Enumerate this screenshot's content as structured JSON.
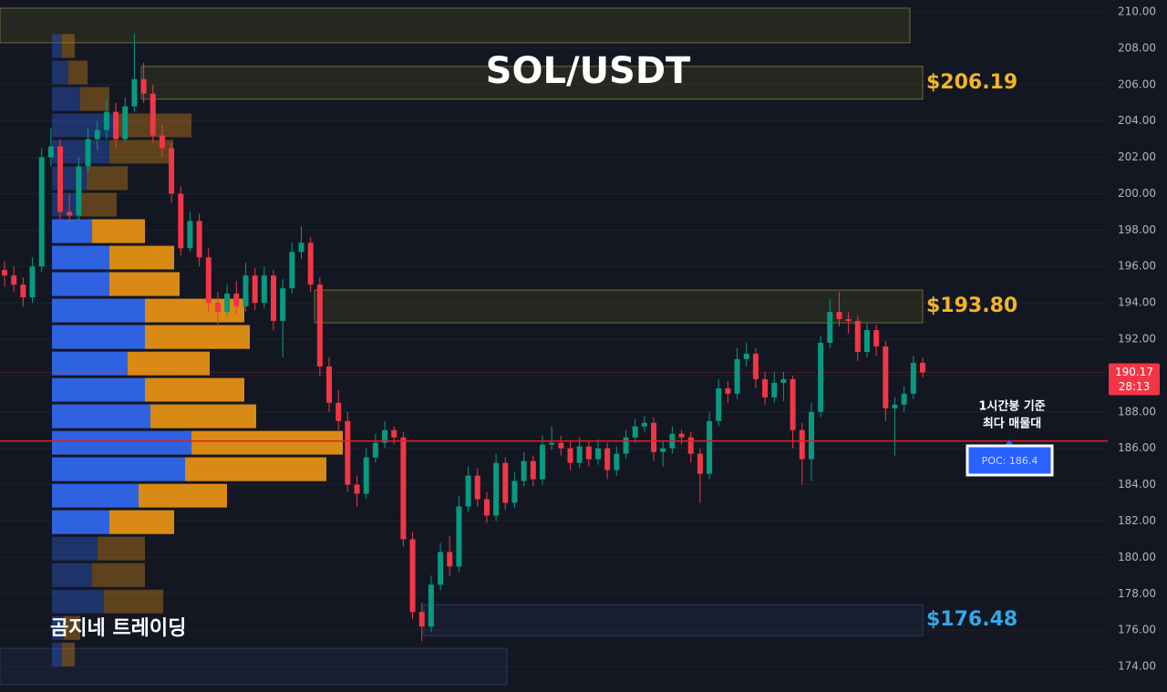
{
  "chart_data": {
    "type": "candlestick",
    "title": "SOL/USDT",
    "watermark": "곰지네 트레이딩",
    "ylim": [
      172.6,
      210.65
    ],
    "yticks": [
      {
        "value": 174,
        "label": "174.00"
      },
      {
        "value": 176,
        "label": "176.00"
      },
      {
        "value": 178,
        "label": "178.00"
      },
      {
        "value": 180,
        "label": "180.00"
      },
      {
        "value": 182,
        "label": "182.00"
      },
      {
        "value": 184,
        "label": "184.00"
      },
      {
        "value": 186,
        "label": "186.00"
      },
      {
        "value": 188,
        "label": "188.00"
      },
      {
        "value": 190,
        "label": "190.00"
      },
      {
        "value": 192,
        "label": "192.00"
      },
      {
        "value": 194,
        "label": "194.00"
      },
      {
        "value": 196,
        "label": "196.00"
      },
      {
        "value": 198,
        "label": "198.00"
      },
      {
        "value": 200,
        "label": "200.00"
      },
      {
        "value": 202,
        "label": "202.00"
      },
      {
        "value": 204,
        "label": "204.00"
      },
      {
        "value": 206,
        "label": "206.00"
      },
      {
        "value": 208,
        "label": "208.00"
      },
      {
        "value": 210,
        "label": "210.00"
      }
    ],
    "grid": true,
    "up_color": "#089981",
    "down_color": "#f23645",
    "candles": [
      [
        195.8,
        196.3,
        194.9,
        195.5
      ],
      [
        195.5,
        196.0,
        194.6,
        195.0
      ],
      [
        195.0,
        195.4,
        193.8,
        194.3
      ],
      [
        194.3,
        196.5,
        194.0,
        196.0
      ],
      [
        196.0,
        202.5,
        195.7,
        202.0
      ],
      [
        202.0,
        203.6,
        201.5,
        202.6
      ],
      [
        202.6,
        203.0,
        198.6,
        199.0
      ],
      [
        199.0,
        200.0,
        198.4,
        198.8
      ],
      [
        198.8,
        202.0,
        198.5,
        201.5
      ],
      [
        201.5,
        203.6,
        201.2,
        203.0
      ],
      [
        203.0,
        204.0,
        202.4,
        203.5
      ],
      [
        203.5,
        205.2,
        203.0,
        204.5
      ],
      [
        204.5,
        205.0,
        202.5,
        203.0
      ],
      [
        203.0,
        205.3,
        202.8,
        204.8
      ],
      [
        204.8,
        208.8,
        204.5,
        206.3
      ],
      [
        206.3,
        207.2,
        205.0,
        205.5
      ],
      [
        205.5,
        206.0,
        202.8,
        203.2
      ],
      [
        203.2,
        203.8,
        202.0,
        202.5
      ],
      [
        202.5,
        202.8,
        199.5,
        200.0
      ],
      [
        200.0,
        200.4,
        196.6,
        197.0
      ],
      [
        197.0,
        199.0,
        196.8,
        198.5
      ],
      [
        198.5,
        198.9,
        196.0,
        196.5
      ],
      [
        196.5,
        197.0,
        193.5,
        194.0
      ],
      [
        194.0,
        194.6,
        192.8,
        193.5
      ],
      [
        193.5,
        195.0,
        193.2,
        194.5
      ],
      [
        194.5,
        195.2,
        193.4,
        193.8
      ],
      [
        193.8,
        196.2,
        193.5,
        195.5
      ],
      [
        195.5,
        195.9,
        193.6,
        194.0
      ],
      [
        194.0,
        196.0,
        193.7,
        195.5
      ],
      [
        195.5,
        195.8,
        192.5,
        193.0
      ],
      [
        193.0,
        195.3,
        191.0,
        194.8
      ],
      [
        194.8,
        197.3,
        194.5,
        196.8
      ],
      [
        196.8,
        198.2,
        196.4,
        197.3
      ],
      [
        197.3,
        197.6,
        194.6,
        195.0
      ],
      [
        195.0,
        195.4,
        190.0,
        190.5
      ],
      [
        190.5,
        191.0,
        188.0,
        188.5
      ],
      [
        188.5,
        189.2,
        187.0,
        187.5
      ],
      [
        187.5,
        188.0,
        183.6,
        184.0
      ],
      [
        184.0,
        184.5,
        182.8,
        183.5
      ],
      [
        183.5,
        186.0,
        183.2,
        185.5
      ],
      [
        185.5,
        186.8,
        185.2,
        186.3
      ],
      [
        186.3,
        187.5,
        186.0,
        187.0
      ],
      [
        187.0,
        187.2,
        186.2,
        186.6
      ],
      [
        186.6,
        186.9,
        180.6,
        181.0
      ],
      [
        181.0,
        181.4,
        176.6,
        177.0
      ],
      [
        177.0,
        177.5,
        175.4,
        176.2
      ],
      [
        176.2,
        179.0,
        175.9,
        178.5
      ],
      [
        178.5,
        180.8,
        178.2,
        180.3
      ],
      [
        180.3,
        181.2,
        179.0,
        179.5
      ],
      [
        179.5,
        183.4,
        179.2,
        182.8
      ],
      [
        182.8,
        185.0,
        182.5,
        184.5
      ],
      [
        184.5,
        184.9,
        182.8,
        183.2
      ],
      [
        183.2,
        183.6,
        181.9,
        182.3
      ],
      [
        182.3,
        185.7,
        182.0,
        185.2
      ],
      [
        185.2,
        185.5,
        182.6,
        183.0
      ],
      [
        183.0,
        184.7,
        182.7,
        184.2
      ],
      [
        184.2,
        185.8,
        183.9,
        185.3
      ],
      [
        185.3,
        185.6,
        183.9,
        184.3
      ],
      [
        184.3,
        186.7,
        184.0,
        186.2
      ],
      [
        186.2,
        187.2,
        185.9,
        186.3
      ],
      [
        186.3,
        186.7,
        185.6,
        186.0
      ],
      [
        186.0,
        186.4,
        184.8,
        185.2
      ],
      [
        185.2,
        186.6,
        184.9,
        186.1
      ],
      [
        186.1,
        186.4,
        185.0,
        185.4
      ],
      [
        185.4,
        186.5,
        185.1,
        186.0
      ],
      [
        186.0,
        186.3,
        184.3,
        184.8
      ],
      [
        184.8,
        186.1,
        184.5,
        185.7
      ],
      [
        185.7,
        187.0,
        185.4,
        186.6
      ],
      [
        186.6,
        187.6,
        186.3,
        187.2
      ],
      [
        187.2,
        187.8,
        186.9,
        187.4
      ],
      [
        187.4,
        187.7,
        185.3,
        185.8
      ],
      [
        185.8,
        186.4,
        185.0,
        186.0
      ],
      [
        186.0,
        187.2,
        185.7,
        186.8
      ],
      [
        186.8,
        187.0,
        186.2,
        186.6
      ],
      [
        186.6,
        186.9,
        185.2,
        185.7
      ],
      [
        185.7,
        186.0,
        183.0,
        184.6
      ],
      [
        184.6,
        188.0,
        184.3,
        187.5
      ],
      [
        187.5,
        189.8,
        187.2,
        189.3
      ],
      [
        189.3,
        189.7,
        188.5,
        189.0
      ],
      [
        189.0,
        191.5,
        188.7,
        190.9
      ],
      [
        190.9,
        191.8,
        190.5,
        191.2
      ],
      [
        191.2,
        191.5,
        189.3,
        189.8
      ],
      [
        189.8,
        190.2,
        188.4,
        188.8
      ],
      [
        188.8,
        190.2,
        188.5,
        189.6
      ],
      [
        189.6,
        190.2,
        188.6,
        189.8
      ],
      [
        189.8,
        190.0,
        186.0,
        187.0
      ],
      [
        187.0,
        187.4,
        184.0,
        185.4
      ],
      [
        185.4,
        188.5,
        184.2,
        188.0
      ],
      [
        188.0,
        192.2,
        187.7,
        191.8
      ],
      [
        191.8,
        194.2,
        191.5,
        193.5
      ],
      [
        193.5,
        194.6,
        192.7,
        193.1
      ],
      [
        193.1,
        193.5,
        192.3,
        193.0
      ],
      [
        193.0,
        193.3,
        190.8,
        191.3
      ],
      [
        191.3,
        192.9,
        191.0,
        192.5
      ],
      [
        192.5,
        192.8,
        191.1,
        191.6
      ],
      [
        191.6,
        191.9,
        187.5,
        188.2
      ],
      [
        188.2,
        188.8,
        185.6,
        188.4
      ],
      [
        188.4,
        189.4,
        188.0,
        189.0
      ],
      [
        189.0,
        191.1,
        188.7,
        190.7
      ],
      [
        190.7,
        191.0,
        189.9,
        190.17
      ]
    ],
    "volume_profile": {
      "bins": [
        208.85,
        207.39,
        205.94,
        204.48,
        203.03,
        201.58,
        200.12,
        198.67,
        197.21,
        195.76,
        194.3,
        192.85,
        191.39,
        189.94,
        188.49,
        187.03,
        185.58,
        184.12,
        182.67,
        181.21,
        179.76,
        178.3,
        176.85,
        175.39,
        173.94
      ],
      "buy": [
        11,
        18,
        31,
        73,
        63,
        38,
        31,
        44,
        63,
        63,
        102,
        102,
        83,
        102,
        108,
        153,
        146,
        95,
        63,
        50,
        44,
        57,
        13,
        11
      ],
      "sell": [
        14,
        21,
        32,
        80,
        70,
        45,
        40,
        58,
        71,
        77,
        109,
        115,
        90,
        109,
        116,
        166,
        155,
        97,
        71,
        52,
        58,
        65,
        18,
        14
      ],
      "value_area": [
        181.21,
        198.67
      ],
      "buy_color": "#2f62e0",
      "sell_color": "#d98a14"
    },
    "zones": [
      {
        "range": [
          208.3,
          210.2
        ]
      },
      {
        "range": [
          205.2,
          207.0
        ],
        "label": "$206.19",
        "color": "#f2b42a"
      },
      {
        "range": [
          192.9,
          194.7
        ],
        "label": "$193.80",
        "color": "#f2b42a"
      },
      {
        "range": [
          175.7,
          177.4
        ],
        "label": "$176.48",
        "color": "#35a7e6"
      },
      {
        "range": [
          173.0,
          175.0
        ]
      }
    ],
    "poc": {
      "value": 186.4,
      "label": "POC: 186.4",
      "note": [
        "1시간봉 기준",
        "최다 매물대"
      ]
    },
    "last_price": {
      "value": 190.17,
      "countdown": "28:13"
    }
  }
}
